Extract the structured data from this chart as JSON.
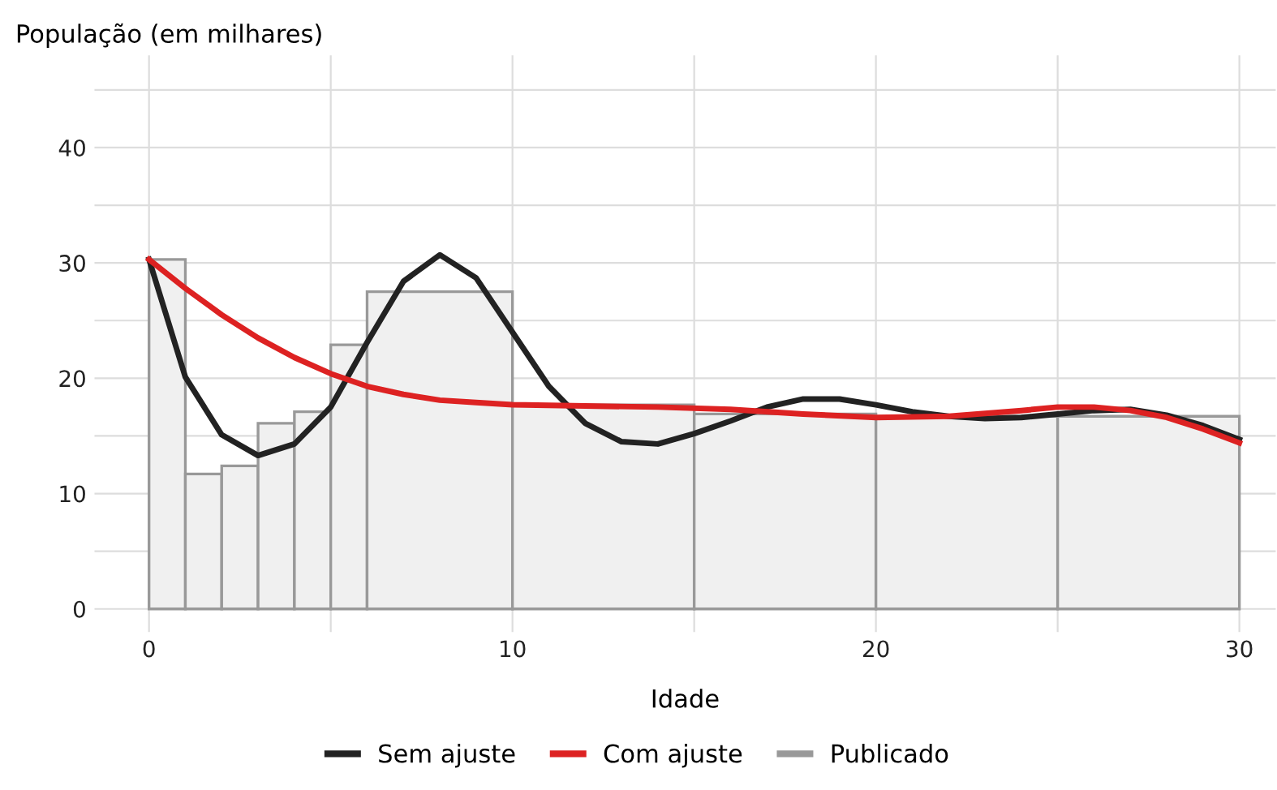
{
  "chart_data": {
    "type": "histogram",
    "ylabel": "População (em milhares)",
    "xlabel": "Idade",
    "xlim": [
      -1.5,
      31
    ],
    "ylim": [
      -2,
      48
    ],
    "xticks": [
      0,
      {
        "value": 5,
        "label": null
      },
      10,
      {
        "value": 15,
        "label": null
      },
      20,
      {
        "value": 25,
        "label": null
      },
      30
    ],
    "yticks": [
      0,
      {
        "value": 5,
        "label": null
      },
      10,
      {
        "value": 15,
        "label": null
      },
      20,
      {
        "value": 25,
        "label": null
      },
      30,
      {
        "value": 35,
        "label": null
      },
      40,
      {
        "value": 45,
        "label": null
      }
    ],
    "grid": true,
    "legend": "bottom",
    "series": [
      {
        "type": "line",
        "name": "Sem ajuste",
        "color": "#222222",
        "x": [
          0,
          1,
          2,
          3,
          4,
          5,
          6,
          7,
          8,
          9,
          10,
          11,
          12,
          13,
          14,
          15,
          16,
          17,
          18,
          19,
          20,
          21,
          22,
          23,
          24,
          25,
          26,
          27,
          28,
          29,
          30
        ],
        "values": [
          30.3,
          20.1,
          15.1,
          13.3,
          14.3,
          17.5,
          23.1,
          28.4,
          30.7,
          28.7,
          24.0,
          19.3,
          16.1,
          14.5,
          14.3,
          15.2,
          16.3,
          17.5,
          18.2,
          18.2,
          17.7,
          17.1,
          16.7,
          16.5,
          16.6,
          16.9,
          17.2,
          17.3,
          16.8,
          15.9,
          14.7
        ]
      },
      {
        "type": "line",
        "name": "Com ajuste",
        "color": "#dd2222",
        "x": [
          0,
          1,
          2,
          3,
          4,
          5,
          6,
          7,
          8,
          9,
          10,
          12,
          14,
          16,
          18,
          20,
          22,
          24,
          25,
          26,
          27,
          28,
          29,
          30
        ],
        "values": [
          30.3,
          27.8,
          25.5,
          23.5,
          21.8,
          20.4,
          19.3,
          18.6,
          18.1,
          17.9,
          17.7,
          17.6,
          17.5,
          17.3,
          16.9,
          16.6,
          16.7,
          17.2,
          17.5,
          17.5,
          17.2,
          16.6,
          15.6,
          14.4
        ]
      },
      {
        "name": "Publicado",
        "color": "#999999",
        "bins": [
          0,
          1,
          2,
          3,
          4,
          5,
          6,
          10,
          15,
          20,
          25,
          30
        ],
        "values": [
          30.3,
          11.7,
          12.4,
          16.1,
          17.1,
          22.9,
          27.5,
          17.7,
          16.9,
          16.7,
          16.7
        ]
      }
    ]
  }
}
